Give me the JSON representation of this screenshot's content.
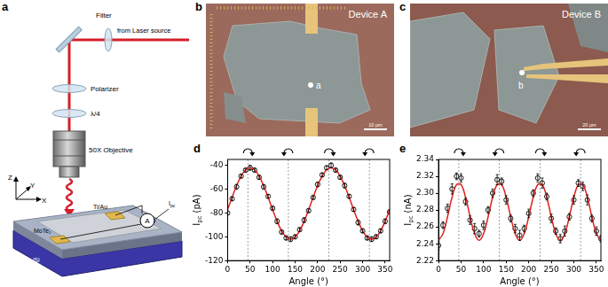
{
  "panel_labels": [
    "a",
    "b",
    "c",
    "d",
    "e"
  ],
  "diagram": {
    "filter": "Filter",
    "source": "from Laser source",
    "polarizer": "Polarizer",
    "waveplate": "λ/4",
    "objective": "50X Objective",
    "electrode": "Ti/Au",
    "ammeter": "A",
    "current": {
      "text": "I",
      "sub": "pc"
    },
    "flake": "MoTe₂",
    "substrate": "SiO₂/Si",
    "axes": [
      "Z",
      "Y",
      "X"
    ]
  },
  "images": [
    {
      "device": "Device A",
      "point": "a",
      "scale_bar": "10 µm"
    },
    {
      "device": "Device B",
      "point": "b",
      "scale_bar": "20 µm"
    }
  ],
  "chart_data": [
    {
      "type": "scatter",
      "x_label": "Angle (°)",
      "y_label": {
        "text": "I",
        "sub": "pc",
        "after": " (pA)"
      },
      "xlim": [
        0,
        360
      ],
      "xticks": [
        0,
        50,
        100,
        150,
        200,
        250,
        300,
        350
      ],
      "ylim": [
        -120,
        -35
      ],
      "yticks": [
        -120,
        -100,
        -80,
        -60,
        -40
      ],
      "grid": false,
      "rotation_markers": {
        "x": [
          45,
          135,
          225,
          315
        ],
        "direction": [
          "clockwise",
          "counterclockwise",
          "clockwise",
          "counterclockwise"
        ]
      },
      "series": [
        {
          "type": "line",
          "color": "#e0201c",
          "line_style": "solid",
          "x": [
            0,
            10,
            20,
            30,
            40,
            50,
            60,
            70,
            80,
            90,
            100,
            110,
            120,
            130,
            140,
            150,
            160,
            170,
            180,
            190,
            200,
            210,
            220,
            230,
            240,
            250,
            260,
            270,
            280,
            290,
            300,
            310,
            320,
            330,
            340,
            350,
            360
          ],
          "values": [
            -77.2,
            -66.8,
            -57,
            -49,
            -43.8,
            -42,
            -43.8,
            -49,
            -57,
            -66.8,
            -77.2,
            -87,
            -95,
            -100.2,
            -102,
            -100.2,
            -95,
            -87,
            -77.2,
            -66.8,
            -57,
            -49,
            -43.8,
            -42,
            -43.8,
            -49,
            -57,
            -66.8,
            -77.2,
            -87,
            -95,
            -100.2,
            -102,
            -100.2,
            -95,
            -87,
            -77.2
          ]
        },
        {
          "type": "scatter",
          "color": "#000000",
          "marker": "open_circle",
          "x": [
            0,
            10,
            20,
            30,
            40,
            50,
            60,
            70,
            80,
            90,
            100,
            110,
            120,
            130,
            140,
            150,
            160,
            170,
            180,
            190,
            200,
            210,
            220,
            230,
            240,
            250,
            260,
            270,
            280,
            290,
            300,
            310,
            320,
            330,
            340,
            350,
            360
          ],
          "values": [
            -80,
            -68,
            -58,
            -49,
            -44,
            -42,
            -44,
            -50,
            -58,
            -66,
            -76,
            -87,
            -96,
            -101,
            -102,
            -100,
            -94,
            -86,
            -78,
            -67,
            -56,
            -48,
            -42,
            -40,
            -44,
            -50,
            -57,
            -66,
            -77,
            -88,
            -95,
            -101,
            -102,
            -100,
            -95,
            -87,
            -79
          ],
          "errors": [
            1.5,
            1.5,
            2,
            1.5,
            1.5,
            2,
            1.5,
            1.5,
            2,
            1.5,
            1.5,
            2,
            1.5,
            1.5,
            2,
            1.5,
            1.5,
            2,
            1.5,
            1.5,
            2,
            1.5,
            1.5,
            2,
            1.5,
            1.5,
            2,
            1.5,
            1.5,
            2,
            1.5,
            1.5,
            2,
            1.5,
            1.5,
            2,
            1.5
          ]
        }
      ]
    },
    {
      "type": "scatter",
      "x_label": "Angle (°)",
      "y_label": {
        "text": "I",
        "sub": "pc",
        "after": " (nA)"
      },
      "xlim": [
        0,
        360
      ],
      "xticks": [
        0,
        50,
        100,
        150,
        200,
        250,
        300,
        350
      ],
      "ylim": [
        2.22,
        2.34
      ],
      "yticks": [
        2.22,
        2.24,
        2.26,
        2.28,
        {
          "value": 2.3,
          "label": "2.30"
        },
        2.32,
        2.34
      ],
      "grid": false,
      "rotation_markers": {
        "x": [
          45,
          135,
          225,
          315
        ],
        "direction": [
          "clockwise",
          "counterclockwise",
          "clockwise",
          "counterclockwise"
        ]
      },
      "series": [
        {
          "type": "line",
          "color": "#e0201c",
          "line_style": "solid",
          "x": [
            0,
            10,
            20,
            30,
            40,
            50,
            60,
            70,
            80,
            90,
            100,
            110,
            120,
            130,
            140,
            150,
            160,
            170,
            180,
            190,
            200,
            210,
            220,
            230,
            240,
            250,
            260,
            270,
            280,
            290,
            300,
            310,
            320,
            330,
            340,
            350,
            360
          ],
          "values": [
            2.244,
            2.252,
            2.272,
            2.295,
            2.31,
            2.31,
            2.295,
            2.272,
            2.252,
            2.244,
            2.252,
            2.272,
            2.295,
            2.31,
            2.31,
            2.295,
            2.272,
            2.252,
            2.244,
            2.252,
            2.272,
            2.295,
            2.31,
            2.31,
            2.295,
            2.272,
            2.252,
            2.244,
            2.252,
            2.272,
            2.295,
            2.31,
            2.31,
            2.295,
            2.272,
            2.252,
            2.244
          ]
        },
        {
          "type": "scatter",
          "color": "#000000",
          "marker": "open_circle",
          "x": [
            0,
            10,
            20,
            30,
            40,
            50,
            60,
            70,
            80,
            90,
            100,
            110,
            120,
            130,
            140,
            150,
            160,
            170,
            180,
            190,
            200,
            210,
            220,
            230,
            240,
            250,
            260,
            270,
            280,
            290,
            300,
            310,
            320,
            330,
            340,
            350,
            360
          ],
          "values": [
            2.238,
            2.262,
            2.282,
            2.305,
            2.32,
            2.318,
            2.29,
            2.268,
            2.258,
            2.252,
            2.262,
            2.28,
            2.3,
            2.316,
            2.314,
            2.292,
            2.27,
            2.258,
            2.25,
            2.258,
            2.276,
            2.3,
            2.318,
            2.312,
            2.296,
            2.27,
            2.255,
            2.246,
            2.255,
            2.272,
            2.292,
            2.312,
            2.308,
            2.292,
            2.27,
            2.255,
            2.246
          ],
          "errors": [
            0.005,
            0.004,
            0.005,
            0.006,
            0.004,
            0.005,
            0.004,
            0.005,
            0.006,
            0.004,
            0.005,
            0.004,
            0.005,
            0.006,
            0.004,
            0.005,
            0.004,
            0.005,
            0.006,
            0.004,
            0.005,
            0.004,
            0.005,
            0.006,
            0.004,
            0.005,
            0.004,
            0.005,
            0.006,
            0.004,
            0.005,
            0.004,
            0.005,
            0.006,
            0.004,
            0.005,
            0.004
          ]
        }
      ]
    }
  ]
}
